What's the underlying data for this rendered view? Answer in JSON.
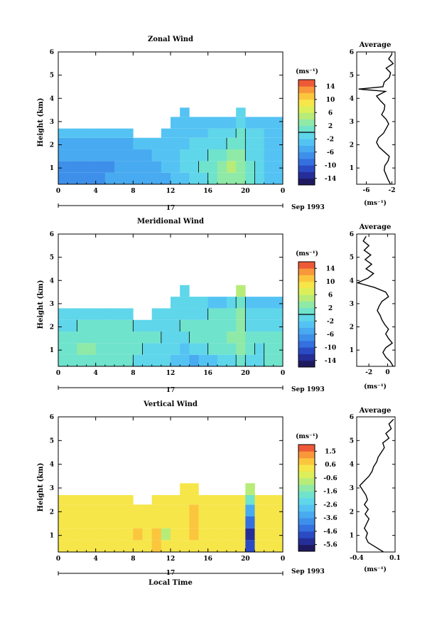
{
  "figure": {
    "xlabel_bottom": "Local Time"
  },
  "chart_data": [
    {
      "type": "heatmap",
      "title": "Zonal Wind",
      "ylabel": "Height (km)",
      "xlim": [
        0,
        24
      ],
      "ylim": [
        0.3,
        6
      ],
      "xticks": [
        "0",
        "4",
        "8",
        "12",
        "16",
        "20",
        "0"
      ],
      "yticks": [
        "1",
        "2",
        "3",
        "4",
        "5",
        "6"
      ],
      "date_day": "17",
      "date_label": "Sep 1993",
      "colorbar": {
        "unit": "(ms⁻¹)",
        "range": [
          -16,
          16
        ],
        "labels": [
          "14",
          "10",
          "6",
          "2",
          "-2",
          "-6",
          "-10",
          "-14"
        ],
        "colors": [
          "#1f1a60",
          "#252e98",
          "#2a4bc4",
          "#3470df",
          "#3e8fe9",
          "#48aaf0",
          "#54c3f3",
          "#5fd6ea",
          "#6fe3cc",
          "#8fe9a7",
          "#b7ec78",
          "#dcef5b",
          "#f6e64a",
          "#fbc63e",
          "#f8983a",
          "#ee5a37"
        ],
        "zero_line": true
      },
      "heat_rows": [
        {
          "h0": 0.3,
          "h1": 0.8,
          "v": [
            -7,
            -7,
            -7,
            -7,
            -7,
            -6,
            -6,
            -6,
            -6,
            -6,
            -6,
            -5,
            -4,
            -3,
            -2,
            -1,
            0,
            2,
            3,
            2,
            0,
            -2,
            -3,
            -4
          ]
        },
        {
          "h0": 0.8,
          "h1": 1.3,
          "v": [
            -8,
            -8,
            -8,
            -7,
            -7,
            -7,
            -6,
            -6,
            -6,
            -6,
            -5,
            -4,
            -3,
            -2,
            -1,
            0,
            1,
            3,
            4,
            3,
            0,
            -1,
            -3,
            -4
          ]
        },
        {
          "h0": 1.3,
          "h1": 1.8,
          "v": [
            -6,
            -6,
            -6,
            -6,
            -6,
            -6,
            -5,
            -5,
            -5,
            -5,
            -4,
            -3,
            -3,
            -2,
            -2,
            -1,
            0,
            1,
            2,
            2,
            -1,
            -2,
            -3,
            -4
          ]
        },
        {
          "h0": 1.8,
          "h1": 2.3,
          "v": [
            -5,
            -5,
            -5,
            -5,
            -5,
            -5,
            -5,
            -5,
            -4,
            -4,
            -4,
            -3,
            -3,
            -3,
            -2,
            -2,
            -1,
            -1,
            0,
            1,
            -1,
            -2,
            -3,
            -3
          ]
        },
        {
          "h0": 2.3,
          "h1": 2.7,
          "v": [
            -4,
            -4,
            -4,
            -4,
            -4,
            -4,
            -4,
            -4,
            null,
            null,
            null,
            -3,
            -3,
            -3,
            -3,
            -3,
            -2,
            -2,
            -2,
            0,
            -2,
            -2,
            -3,
            -3
          ]
        },
        {
          "h0": 2.7,
          "h1": 3.2,
          "v": [
            null,
            null,
            null,
            null,
            null,
            null,
            null,
            null,
            null,
            null,
            null,
            null,
            -3,
            -3,
            -3,
            -3,
            -3,
            -3,
            -3,
            -2,
            -3,
            -3,
            -3,
            -3
          ]
        },
        {
          "h0": 3.2,
          "h1": 3.6,
          "v": [
            null,
            null,
            null,
            null,
            null,
            null,
            null,
            null,
            null,
            null,
            null,
            null,
            null,
            -3,
            null,
            null,
            null,
            null,
            null,
            -1,
            null,
            null,
            null,
            null
          ]
        }
      ],
      "profile": {
        "title": "Average",
        "xlim": [
          -7.5,
          -1.5
        ],
        "xticks": [
          "-6",
          "-2"
        ],
        "xtick_values": [
          -6,
          -2
        ],
        "xlabel": "(ms⁻¹)",
        "heights": [
          0.3,
          0.5,
          0.7,
          0.9,
          1.1,
          1.3,
          1.5,
          1.7,
          1.9,
          2.1,
          2.3,
          2.5,
          2.7,
          2.9,
          3.1,
          3.3,
          3.5,
          3.7,
          3.9,
          4.1,
          4.3,
          4.4,
          4.5,
          4.7,
          4.9,
          5.1,
          5.3,
          5.5,
          5.7,
          5.9
        ],
        "values": [
          -2.2,
          -2.6,
          -2.9,
          -3.2,
          -3.1,
          -2.6,
          -2.4,
          -3.2,
          -4.0,
          -4.4,
          -4.1,
          -3.3,
          -2.9,
          -2.5,
          -2.9,
          -3.6,
          -3.2,
          -3.1,
          -3.8,
          -4.4,
          -3.0,
          -7.2,
          -3.4,
          -3.2,
          -2.4,
          -2.2,
          -2.9,
          -1.8,
          -2.5,
          -2.0
        ]
      }
    },
    {
      "type": "heatmap",
      "title": "Meridional Wind",
      "ylabel": "Height (km)",
      "xlim": [
        0,
        24
      ],
      "ylim": [
        0.3,
        6
      ],
      "xticks": [
        "0",
        "4",
        "8",
        "12",
        "16",
        "20",
        "0"
      ],
      "yticks": [
        "1",
        "2",
        "3",
        "4",
        "5",
        "6"
      ],
      "date_day": "17",
      "date_label": "Sep 1993",
      "colorbar": {
        "unit": "(ms⁻¹)",
        "range": [
          -16,
          16
        ],
        "labels": [
          "14",
          "10",
          "6",
          "2",
          "-2",
          "-6",
          "-10",
          "-14"
        ],
        "colors": [
          "#1f1a60",
          "#252e98",
          "#2a4bc4",
          "#3470df",
          "#3e8fe9",
          "#48aaf0",
          "#54c3f3",
          "#5fd6ea",
          "#6fe3cc",
          "#8fe9a7",
          "#b7ec78",
          "#dcef5b",
          "#f6e64a",
          "#fbc63e",
          "#f8983a",
          "#ee5a37"
        ],
        "zero_line": true
      },
      "heat_rows": [
        {
          "h0": 0.3,
          "h1": 0.8,
          "v": [
            0,
            0,
            1,
            1,
            1,
            0,
            0,
            0,
            -1,
            -1,
            -1,
            -2,
            -3,
            -4,
            -5,
            -4,
            -3,
            -2,
            -1,
            1,
            -1,
            -1,
            0,
            0
          ]
        },
        {
          "h0": 0.8,
          "h1": 1.3,
          "v": [
            1,
            1,
            2,
            2,
            1,
            1,
            0,
            0,
            0,
            -1,
            -1,
            -1,
            -2,
            -3,
            -2,
            -1,
            0,
            1,
            1,
            2,
            0,
            -1,
            0,
            0
          ]
        },
        {
          "h0": 1.3,
          "h1": 1.8,
          "v": [
            0,
            0,
            1,
            1,
            1,
            1,
            1,
            0,
            0,
            0,
            0,
            -1,
            -1,
            -1,
            0,
            0,
            1,
            1,
            2,
            2,
            0,
            0,
            0,
            0
          ]
        },
        {
          "h0": 1.8,
          "h1": 2.3,
          "v": [
            -1,
            -1,
            0,
            0,
            0,
            0,
            0,
            0,
            -1,
            -1,
            -1,
            -1,
            -1,
            0,
            0,
            0,
            1,
            1,
            1,
            2,
            -1,
            -1,
            -1,
            -1
          ]
        },
        {
          "h0": 2.3,
          "h1": 2.8,
          "v": [
            -2,
            -2,
            -2,
            -2,
            -2,
            -1,
            -1,
            -1,
            null,
            null,
            -1,
            -2,
            -2,
            -1,
            -1,
            -1,
            0,
            0,
            0,
            2,
            -2,
            -2,
            -2,
            -2
          ]
        },
        {
          "h0": 2.8,
          "h1": 3.3,
          "v": [
            null,
            null,
            null,
            null,
            null,
            null,
            null,
            null,
            null,
            null,
            null,
            null,
            -2,
            -2,
            -2,
            -2,
            -3,
            -3,
            -2,
            0,
            -3,
            -3,
            -3,
            -3
          ]
        },
        {
          "h0": 3.3,
          "h1": 3.8,
          "v": [
            null,
            null,
            null,
            null,
            null,
            null,
            null,
            null,
            null,
            null,
            null,
            null,
            null,
            -2,
            null,
            null,
            null,
            null,
            null,
            4,
            null,
            null,
            null,
            null
          ]
        }
      ],
      "profile": {
        "title": "Average",
        "xlim": [
          -3.3,
          0.8
        ],
        "xticks": [
          "-2",
          "0"
        ],
        "xtick_values": [
          -2,
          0
        ],
        "xlabel": "(ms⁻¹)",
        "heights": [
          0.3,
          0.5,
          0.7,
          0.9,
          1.1,
          1.3,
          1.5,
          1.7,
          1.9,
          2.1,
          2.3,
          2.5,
          2.7,
          2.9,
          3.1,
          3.3,
          3.5,
          3.7,
          3.9,
          4.1,
          4.3,
          4.5,
          4.7,
          4.9,
          5.1,
          5.3,
          5.5,
          5.7,
          5.9
        ],
        "values": [
          0.6,
          0.3,
          -0.2,
          -0.5,
          -0.2,
          0.5,
          0.1,
          -0.2,
          0.1,
          -0.3,
          -0.6,
          -0.8,
          -1.1,
          -0.9,
          -0.6,
          0.1,
          -0.2,
          -1.4,
          -3.2,
          -2.1,
          -1.5,
          -2.3,
          -1.7,
          -2.4,
          -1.8,
          -2.5,
          -2.0,
          -2.6,
          -2.3
        ]
      }
    },
    {
      "type": "heatmap",
      "title": "Vertical Wind",
      "ylabel": "Height (km)",
      "xlabel": "Local Time",
      "xlim": [
        0,
        24
      ],
      "ylim": [
        0.3,
        6
      ],
      "xticks": [
        "0",
        "4",
        "8",
        "12",
        "16",
        "20",
        "0"
      ],
      "yticks": [
        "1",
        "2",
        "3",
        "4",
        "5",
        "6"
      ],
      "date_day": "17",
      "date_label": "Sep 1993",
      "colorbar": {
        "unit": "(ms⁻¹)",
        "range": [
          -6,
          2
        ],
        "labels": [
          "1.5",
          "0.6",
          "-0.6",
          "-1.6",
          "-2.6",
          "-3.6",
          "-4.6",
          "-5.6"
        ],
        "colors": [
          "#1f1a60",
          "#252e98",
          "#2a4bc4",
          "#3470df",
          "#3e8fe9",
          "#48aaf0",
          "#54c3f3",
          "#5fd6ea",
          "#6fe3cc",
          "#8fe9a7",
          "#b7ec78",
          "#dcef5b",
          "#f6e64a",
          "#fbc63e",
          "#f8983a",
          "#ee5a37"
        ],
        "zero_line": false
      },
      "heat_rows": [
        {
          "h0": 0.3,
          "h1": 0.8,
          "v": [
            0.2,
            0.3,
            0.2,
            0.1,
            0.3,
            0.2,
            0.2,
            0.3,
            0.4,
            0.2,
            0.5,
            0.1,
            0.3,
            0.2,
            0.3,
            0.2,
            0.2,
            0.1,
            0.3,
            0.2,
            -4.8,
            0.1,
            0.2,
            0.1
          ]
        },
        {
          "h0": 0.8,
          "h1": 1.3,
          "v": [
            0.3,
            0.2,
            0.3,
            0.2,
            0.2,
            0.3,
            0.3,
            0.2,
            0.6,
            0.3,
            0.7,
            -0.9,
            0.4,
            0.2,
            0.5,
            0.3,
            0.3,
            0.2,
            0.4,
            0.3,
            -5.2,
            0.2,
            0.3,
            0.2
          ]
        },
        {
          "h0": 1.3,
          "h1": 1.8,
          "v": [
            0.1,
            0.2,
            0.1,
            0.2,
            0.1,
            0.2,
            0.2,
            0.1,
            0.3,
            0.2,
            0.4,
            0.2,
            0.3,
            0.4,
            0.6,
            0.2,
            0.2,
            0.3,
            0.2,
            0.2,
            -4.4,
            0.2,
            0.1,
            0.2
          ]
        },
        {
          "h0": 1.8,
          "h1": 2.3,
          "v": [
            0.1,
            0.1,
            0.2,
            0.1,
            0.2,
            0.1,
            0.1,
            0.2,
            0.2,
            0.1,
            0.2,
            0.1,
            0.2,
            0.2,
            0.5,
            0.2,
            0.2,
            0.1,
            0.2,
            0.1,
            -3.2,
            0.1,
            0.1,
            0.1
          ]
        },
        {
          "h0": 2.3,
          "h1": 2.7,
          "v": [
            0.1,
            0.1,
            0.1,
            0.1,
            0.1,
            0.2,
            0.1,
            0.1,
            null,
            null,
            0.1,
            0.1,
            0.1,
            0.2,
            0.3,
            0.1,
            0.1,
            0.1,
            0.1,
            0.2,
            -2.0,
            0.1,
            0.1,
            0.1
          ]
        },
        {
          "h0": 2.7,
          "h1": 3.2,
          "v": [
            null,
            null,
            null,
            null,
            null,
            null,
            null,
            null,
            null,
            null,
            null,
            null,
            null,
            0.2,
            0.3,
            null,
            null,
            null,
            null,
            null,
            -1.0,
            null,
            null,
            null
          ]
        }
      ],
      "profile": {
        "title": "Average",
        "xlim": [
          -0.4,
          0.1
        ],
        "xticks": [
          "-0.4",
          "0.1"
        ],
        "xtick_values": [
          -0.4,
          0.1
        ],
        "xlabel": "(ms⁻¹)",
        "heights": [
          0.3,
          0.5,
          0.7,
          0.9,
          1.1,
          1.3,
          1.5,
          1.7,
          1.9,
          2.1,
          2.3,
          2.5,
          2.7,
          2.9,
          3.1,
          3.3,
          3.5,
          3.7,
          3.9,
          4.1,
          4.3,
          4.5,
          4.7,
          4.9,
          5.1,
          5.3,
          5.5,
          5.7,
          5.9
        ],
        "values": [
          -0.05,
          -0.15,
          -0.25,
          -0.28,
          -0.26,
          -0.3,
          -0.27,
          -0.24,
          -0.29,
          -0.25,
          -0.3,
          -0.26,
          -0.28,
          -0.32,
          -0.36,
          -0.3,
          -0.24,
          -0.2,
          -0.18,
          -0.14,
          -0.12,
          -0.08,
          -0.04,
          -0.06,
          0.02,
          -0.02,
          0.05,
          0.02,
          0.08
        ]
      }
    }
  ]
}
